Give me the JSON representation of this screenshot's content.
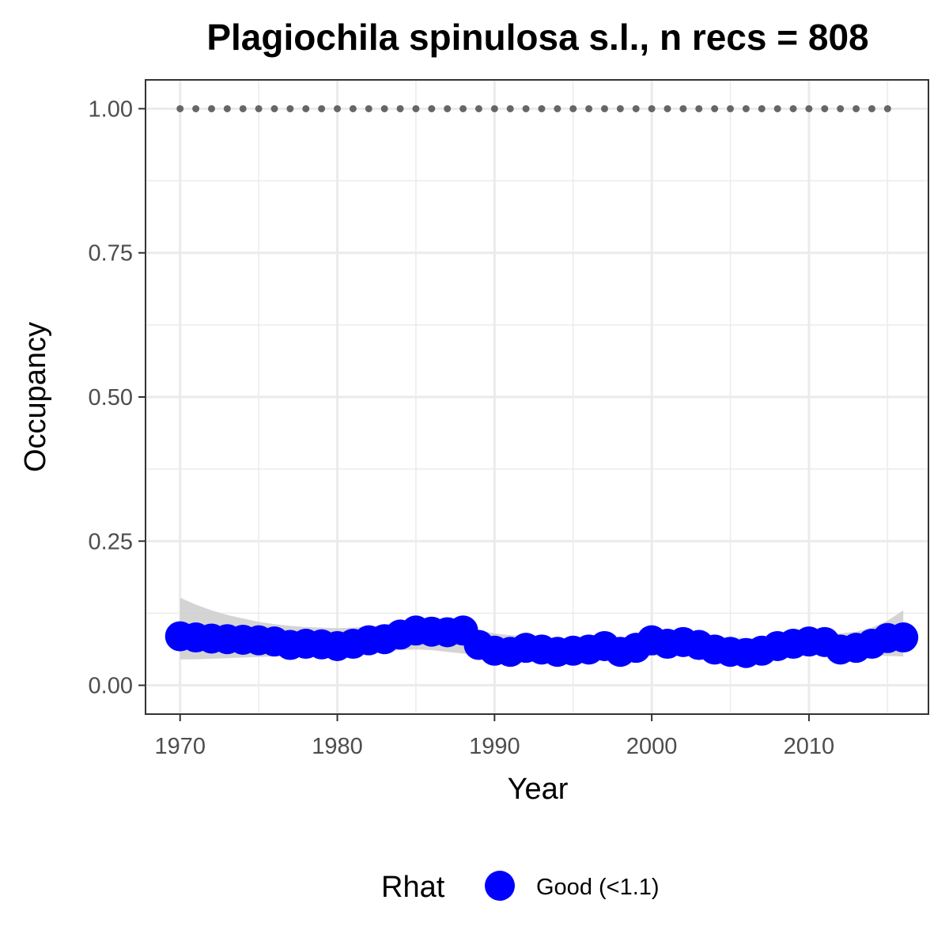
{
  "chart_data": {
    "type": "line",
    "title": "Plagiochila spinulosa s.l., n recs = 808",
    "xlabel": "Year",
    "ylabel": "Occupancy",
    "xlim": [
      1967.8,
      2017.6
    ],
    "ylim": [
      -0.05,
      1.05
    ],
    "x_ticks": [
      1970,
      1980,
      1990,
      2000,
      2010
    ],
    "y_ticks": [
      0.0,
      0.25,
      0.5,
      0.75,
      1.0
    ],
    "y_tick_labels": [
      "0.00",
      "0.25",
      "0.50",
      "0.75",
      "1.00"
    ],
    "grid": true,
    "legend": {
      "position": "bottom",
      "title": "Rhat",
      "entries": [
        {
          "label": "Good (<1.1)",
          "color": "#0000ff"
        }
      ]
    },
    "reference_series": {
      "x": [
        1970,
        1971,
        1972,
        1973,
        1974,
        1975,
        1976,
        1977,
        1978,
        1979,
        1980,
        1981,
        1982,
        1983,
        1984,
        1985,
        1986,
        1987,
        1988,
        1989,
        1990,
        1991,
        1992,
        1993,
        1994,
        1995,
        1996,
        1997,
        1998,
        1999,
        2000,
        2001,
        2002,
        2003,
        2004,
        2005,
        2006,
        2007,
        2008,
        2009,
        2010,
        2011,
        2012,
        2013,
        2014,
        2015
      ],
      "y": [
        1,
        1,
        1,
        1,
        1,
        1,
        1,
        1,
        1,
        1,
        1,
        1,
        1,
        1,
        1,
        1,
        1,
        1,
        1,
        1,
        1,
        1,
        1,
        1,
        1,
        1,
        1,
        1,
        1,
        1,
        1,
        1,
        1,
        1,
        1,
        1,
        1,
        1,
        1,
        1,
        1,
        1,
        1,
        1,
        1,
        1
      ],
      "style": "dotted",
      "color": "#666666"
    },
    "series": [
      {
        "x": [
          1970,
          1971,
          1972,
          1973,
          1974,
          1975,
          1976,
          1977,
          1978,
          1979,
          1980,
          1981,
          1982,
          1983,
          1984,
          1985,
          1986,
          1987,
          1988,
          1989,
          1990,
          1991,
          1992,
          1993,
          1994,
          1995,
          1996,
          1997,
          1998,
          1999,
          2000,
          2001,
          2002,
          2003,
          2004,
          2005,
          2006,
          2007,
          2008,
          2009,
          2010,
          2011,
          2012,
          2013,
          2014,
          2015,
          2016
        ],
        "y": [
          0.085,
          0.083,
          0.081,
          0.08,
          0.079,
          0.078,
          0.076,
          0.07,
          0.072,
          0.071,
          0.068,
          0.072,
          0.078,
          0.08,
          0.088,
          0.095,
          0.093,
          0.092,
          0.095,
          0.07,
          0.06,
          0.058,
          0.065,
          0.062,
          0.058,
          0.06,
          0.062,
          0.068,
          0.058,
          0.065,
          0.078,
          0.072,
          0.075,
          0.07,
          0.062,
          0.058,
          0.056,
          0.06,
          0.068,
          0.072,
          0.076,
          0.075,
          0.062,
          0.065,
          0.072,
          0.082,
          0.083
        ],
        "color": "#0000ff",
        "band_lower": [
          0.045,
          0.045,
          0.046,
          0.047,
          0.048,
          0.049,
          0.05,
          0.051,
          0.052,
          0.053,
          0.054,
          0.055,
          0.057,
          0.059,
          0.061,
          0.062,
          0.061,
          0.058,
          0.055,
          0.052,
          0.05,
          0.048,
          0.047,
          0.046,
          0.045,
          0.045,
          0.045,
          0.046,
          0.047,
          0.049,
          0.051,
          0.052,
          0.053,
          0.052,
          0.05,
          0.048,
          0.047,
          0.047,
          0.048,
          0.05,
          0.052,
          0.054,
          0.054,
          0.053,
          0.052,
          0.051,
          0.05
        ],
        "band_upper": [
          0.152,
          0.14,
          0.13,
          0.122,
          0.116,
          0.11,
          0.106,
          0.103,
          0.101,
          0.1,
          0.099,
          0.1,
          0.102,
          0.105,
          0.108,
          0.11,
          0.109,
          0.105,
          0.1,
          0.095,
          0.09,
          0.087,
          0.085,
          0.083,
          0.082,
          0.081,
          0.081,
          0.082,
          0.083,
          0.085,
          0.087,
          0.088,
          0.088,
          0.087,
          0.085,
          0.083,
          0.082,
          0.082,
          0.083,
          0.085,
          0.087,
          0.089,
          0.09,
          0.093,
          0.1,
          0.112,
          0.13
        ],
        "band_color": "#cccccc"
      }
    ]
  }
}
